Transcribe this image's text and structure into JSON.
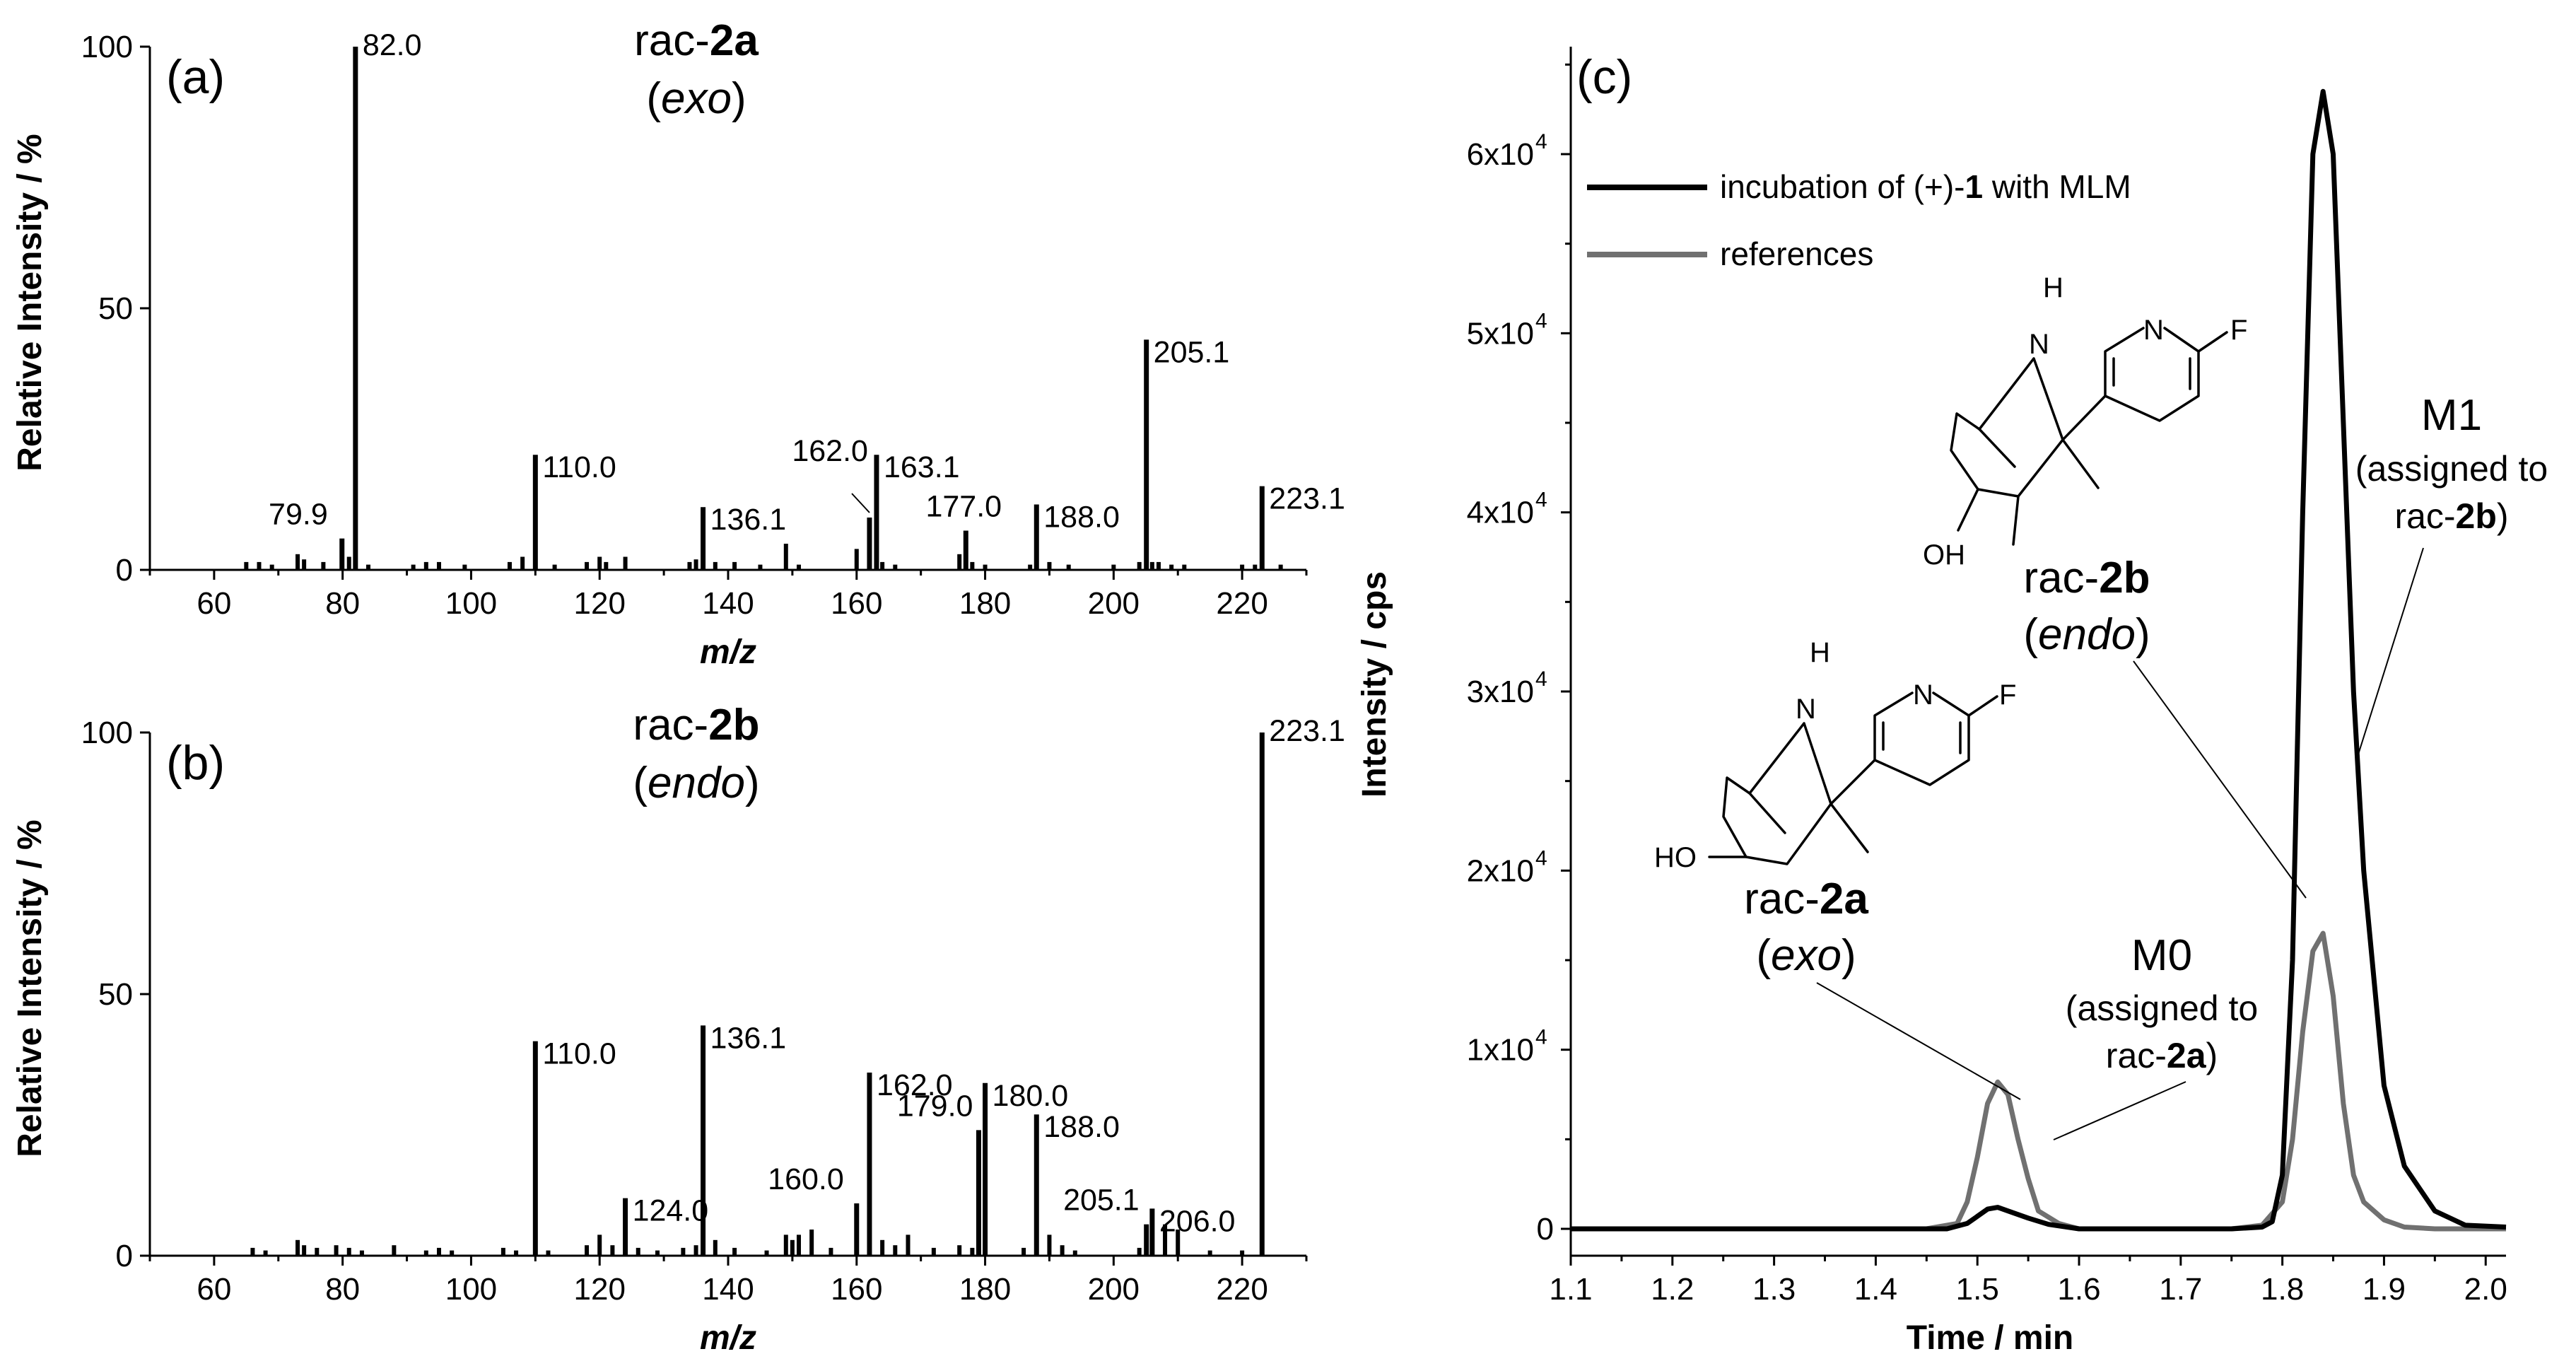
{
  "colors": {
    "sample": "#000000",
    "reference": "#707070",
    "axis": "#000000"
  },
  "chart_data": [
    {
      "panel": "(a)",
      "type": "bar",
      "title": "rac-2a",
      "title_parts": [
        "rac-",
        "2a"
      ],
      "subtitle": "(exo)",
      "subtitle_parts": [
        "(",
        "exo",
        ")"
      ],
      "xlabel": "m/z",
      "ylabel": "Relative Intensity / %",
      "xlim": [
        50,
        230
      ],
      "ylim": [
        0,
        100
      ],
      "xticks": [
        60,
        80,
        100,
        120,
        140,
        160,
        180,
        200,
        220
      ],
      "yticks": [
        0,
        50,
        100
      ],
      "peaks": [
        {
          "x": 79.9,
          "y": 6,
          "label": "79.9"
        },
        {
          "x": 82.0,
          "y": 100,
          "label": "82.0"
        },
        {
          "x": 110.0,
          "y": 22,
          "label": "110.0"
        },
        {
          "x": 136.1,
          "y": 12,
          "label": "136.1"
        },
        {
          "x": 162.0,
          "y": 10,
          "label": "162.0"
        },
        {
          "x": 163.1,
          "y": 22,
          "label": "163.1"
        },
        {
          "x": 177.0,
          "y": 7.5,
          "label": "177.0"
        },
        {
          "x": 188.0,
          "y": 12.5,
          "label": "188.0"
        },
        {
          "x": 205.1,
          "y": 44,
          "label": "205.1"
        },
        {
          "x": 223.1,
          "y": 16,
          "label": "223.1"
        }
      ],
      "minor_peaks": [
        {
          "x": 65,
          "y": 1.5
        },
        {
          "x": 67,
          "y": 1.5
        },
        {
          "x": 69,
          "y": 1
        },
        {
          "x": 73,
          "y": 3
        },
        {
          "x": 74,
          "y": 2
        },
        {
          "x": 77,
          "y": 1.5
        },
        {
          "x": 81,
          "y": 2.5
        },
        {
          "x": 84,
          "y": 1
        },
        {
          "x": 91,
          "y": 1
        },
        {
          "x": 93,
          "y": 1.5
        },
        {
          "x": 95,
          "y": 1.5
        },
        {
          "x": 99,
          "y": 1
        },
        {
          "x": 106,
          "y": 1.5
        },
        {
          "x": 108,
          "y": 2.5
        },
        {
          "x": 113,
          "y": 1
        },
        {
          "x": 118,
          "y": 1.5
        },
        {
          "x": 120,
          "y": 2.5
        },
        {
          "x": 121,
          "y": 1.5
        },
        {
          "x": 124,
          "y": 2.5
        },
        {
          "x": 134,
          "y": 1.5
        },
        {
          "x": 135,
          "y": 2
        },
        {
          "x": 138,
          "y": 1.5
        },
        {
          "x": 141,
          "y": 1.5
        },
        {
          "x": 145,
          "y": 1
        },
        {
          "x": 149,
          "y": 5
        },
        {
          "x": 151,
          "y": 1
        },
        {
          "x": 160,
          "y": 4
        },
        {
          "x": 164,
          "y": 1.5
        },
        {
          "x": 166,
          "y": 1
        },
        {
          "x": 176,
          "y": 3
        },
        {
          "x": 178,
          "y": 1.5
        },
        {
          "x": 180,
          "y": 1
        },
        {
          "x": 187,
          "y": 1
        },
        {
          "x": 190,
          "y": 1.5
        },
        {
          "x": 193,
          "y": 1
        },
        {
          "x": 200,
          "y": 1
        },
        {
          "x": 204,
          "y": 1.5
        },
        {
          "x": 206,
          "y": 1.5
        },
        {
          "x": 207,
          "y": 1.5
        },
        {
          "x": 209,
          "y": 1
        },
        {
          "x": 211,
          "y": 1
        },
        {
          "x": 220,
          "y": 1
        },
        {
          "x": 222,
          "y": 1
        },
        {
          "x": 226,
          "y": 1
        }
      ]
    },
    {
      "panel": "(b)",
      "type": "bar",
      "title": "rac-2b",
      "title_parts": [
        "rac-",
        "2b"
      ],
      "subtitle": "(endo)",
      "subtitle_parts": [
        "(",
        "endo",
        ")"
      ],
      "xlabel": "m/z",
      "ylabel": "Relative Intensity / %",
      "xlim": [
        50,
        230
      ],
      "ylim": [
        0,
        100
      ],
      "xticks": [
        60,
        80,
        100,
        120,
        140,
        160,
        180,
        200,
        220
      ],
      "yticks": [
        0,
        50,
        100
      ],
      "peaks": [
        {
          "x": 110.0,
          "y": 41,
          "label": "110.0"
        },
        {
          "x": 124.0,
          "y": 11,
          "label": "124.0"
        },
        {
          "x": 136.1,
          "y": 44,
          "label": "136.1"
        },
        {
          "x": 160.0,
          "y": 10,
          "label": "160.0"
        },
        {
          "x": 162.0,
          "y": 35,
          "label": "162.0"
        },
        {
          "x": 179.0,
          "y": 24,
          "label": "179.0"
        },
        {
          "x": 180.0,
          "y": 33,
          "label": "180.0"
        },
        {
          "x": 188.0,
          "y": 27,
          "label": "188.0"
        },
        {
          "x": 205.1,
          "y": 6,
          "label": "205.1"
        },
        {
          "x": 206.0,
          "y": 9,
          "label": "206.0"
        },
        {
          "x": 223.1,
          "y": 100,
          "label": "223.1"
        }
      ],
      "minor_peaks": [
        {
          "x": 66,
          "y": 1.5
        },
        {
          "x": 68,
          "y": 1
        },
        {
          "x": 73,
          "y": 3
        },
        {
          "x": 74,
          "y": 2
        },
        {
          "x": 76,
          "y": 1.5
        },
        {
          "x": 79,
          "y": 2
        },
        {
          "x": 81,
          "y": 1.5
        },
        {
          "x": 83,
          "y": 1
        },
        {
          "x": 88,
          "y": 2
        },
        {
          "x": 93,
          "y": 1
        },
        {
          "x": 95,
          "y": 1.5
        },
        {
          "x": 97,
          "y": 1
        },
        {
          "x": 105,
          "y": 1.5
        },
        {
          "x": 107,
          "y": 1
        },
        {
          "x": 112,
          "y": 1
        },
        {
          "x": 118,
          "y": 2
        },
        {
          "x": 120,
          "y": 4
        },
        {
          "x": 122,
          "y": 2
        },
        {
          "x": 126,
          "y": 1.5
        },
        {
          "x": 129,
          "y": 1
        },
        {
          "x": 133,
          "y": 1.5
        },
        {
          "x": 135,
          "y": 2
        },
        {
          "x": 138,
          "y": 3
        },
        {
          "x": 141,
          "y": 1.5
        },
        {
          "x": 146,
          "y": 1
        },
        {
          "x": 149,
          "y": 4
        },
        {
          "x": 150,
          "y": 3
        },
        {
          "x": 151,
          "y": 4
        },
        {
          "x": 153,
          "y": 5
        },
        {
          "x": 156,
          "y": 1.5
        },
        {
          "x": 164,
          "y": 3
        },
        {
          "x": 166,
          "y": 2
        },
        {
          "x": 168,
          "y": 4
        },
        {
          "x": 172,
          "y": 1.5
        },
        {
          "x": 176,
          "y": 2
        },
        {
          "x": 178,
          "y": 1.5
        },
        {
          "x": 186,
          "y": 1.5
        },
        {
          "x": 190,
          "y": 4
        },
        {
          "x": 192,
          "y": 2
        },
        {
          "x": 194,
          "y": 1
        },
        {
          "x": 204,
          "y": 1.5
        },
        {
          "x": 208,
          "y": 6
        },
        {
          "x": 210,
          "y": 5
        },
        {
          "x": 215,
          "y": 1
        },
        {
          "x": 220,
          "y": 1
        }
      ]
    },
    {
      "panel": "(c)",
      "type": "line",
      "xlabel": "Time / min",
      "ylabel": "Intensity / cps",
      "xlim": [
        1.1,
        2.02
      ],
      "ylim": [
        -1500,
        66000
      ],
      "xticks": [
        1.1,
        1.2,
        1.3,
        1.4,
        1.5,
        1.6,
        1.7,
        1.8,
        1.9,
        2.0
      ],
      "ytick_values": [
        0,
        10000,
        20000,
        30000,
        40000,
        50000,
        60000
      ],
      "ytick_mantissas": [
        "0",
        "1x10",
        "2x10",
        "3x10",
        "4x10",
        "5x10",
        "6x10"
      ],
      "ytick_exponent": "4",
      "legend": {
        "position": "top-left",
        "entries": [
          {
            "parts": [
              "incubation of (+)-",
              "1",
              " with MLM"
            ],
            "series": "sample"
          },
          {
            "parts": [
              "references"
            ],
            "series": "reference"
          }
        ]
      },
      "series": [
        {
          "name": "incubation of (+)-1 with MLM",
          "key": "sample",
          "x": [
            1.1,
            1.2,
            1.3,
            1.4,
            1.47,
            1.49,
            1.5,
            1.51,
            1.52,
            1.53,
            1.55,
            1.57,
            1.6,
            1.65,
            1.7,
            1.75,
            1.78,
            1.79,
            1.8,
            1.81,
            1.82,
            1.83,
            1.84,
            1.85,
            1.86,
            1.87,
            1.88,
            1.9,
            1.92,
            1.95,
            1.98,
            2.02
          ],
          "y": [
            0,
            0,
            0,
            0,
            0,
            300,
            700,
            1100,
            1200,
            1000,
            600,
            250,
            0,
            0,
            0,
            0,
            100,
            400,
            3000,
            15000,
            40000,
            60000,
            63500,
            60000,
            45000,
            30000,
            20000,
            8000,
            3500,
            1000,
            200,
            100
          ]
        },
        {
          "name": "references",
          "key": "reference",
          "x": [
            1.1,
            1.15,
            1.2,
            1.25,
            1.3,
            1.35,
            1.4,
            1.45,
            1.48,
            1.49,
            1.5,
            1.51,
            1.52,
            1.53,
            1.54,
            1.55,
            1.56,
            1.58,
            1.6,
            1.65,
            1.7,
            1.75,
            1.78,
            1.8,
            1.81,
            1.82,
            1.83,
            1.84,
            1.85,
            1.86,
            1.87,
            1.88,
            1.9,
            1.92,
            1.95,
            1.98,
            2.02
          ],
          "y": [
            0,
            0,
            0,
            0,
            0,
            0,
            0,
            0,
            300,
            1500,
            4000,
            7000,
            8200,
            7500,
            5000,
            2800,
            1000,
            300,
            0,
            0,
            0,
            0,
            200,
            1500,
            5000,
            11000,
            15500,
            16500,
            13000,
            7000,
            3000,
            1500,
            500,
            100,
            0,
            0,
            0
          ]
        }
      ],
      "annotations": [
        {
          "id": "m1",
          "lines": [
            "M1",
            "(assigned to",
            "rac-2b)"
          ],
          "line3_parts": [
            "rac-",
            "2b",
            ")"
          ]
        },
        {
          "id": "m0",
          "lines": [
            "M0",
            "(assigned to",
            "rac-2a)"
          ],
          "line3_parts": [
            "rac-",
            "2a",
            ")"
          ]
        },
        {
          "id": "c2b",
          "title_parts": [
            "rac-",
            "2b"
          ],
          "subtitle_parts": [
            "(",
            "endo",
            ")"
          ]
        },
        {
          "id": "c2a",
          "title_parts": [
            "rac-",
            "2a"
          ],
          "subtitle_parts": [
            "(",
            "exo",
            ")"
          ]
        }
      ],
      "structure_atoms": {
        "amine": "H",
        "amine_n": "N",
        "pyridine_n": "N",
        "fluorine": "F",
        "hydroxyl_2b": "OH",
        "hydroxyl_2a": "HO"
      }
    }
  ]
}
